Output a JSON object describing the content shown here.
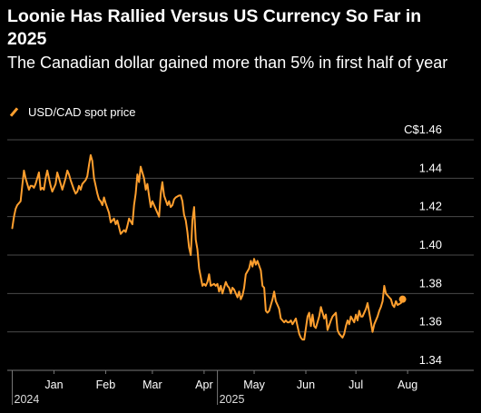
{
  "header": {
    "title": "Loonie Has Rallied Versus US Currency So Far in 2025",
    "subtitle": "The Canadian dollar gained more than 5% in first half of year"
  },
  "legend": {
    "label": "USD/CAD spot price"
  },
  "colors": {
    "background": "#000000",
    "line": "#ff9f2e",
    "grid": "#4a4a4a",
    "text": "#ffffff"
  },
  "chart_data": {
    "type": "line",
    "title": "Loonie Has Rallied Versus US Currency So Far in 2025",
    "subtitle": "The Canadian dollar gained more than 5% in first half of year",
    "legend_position": "top-left",
    "grid": true,
    "ylim": [
      1.34,
      1.46
    ],
    "y_ticks": [
      {
        "value": 1.46,
        "label": "C$1.46"
      },
      {
        "value": 1.44,
        "label": "1.44"
      },
      {
        "value": 1.42,
        "label": "1.42"
      },
      {
        "value": 1.4,
        "label": "1.40"
      },
      {
        "value": 1.38,
        "label": "1.38"
      },
      {
        "value": 1.36,
        "label": "1.36"
      },
      {
        "value": 1.34,
        "label": "1.34"
      }
    ],
    "xlim": [
      "2024-12-18",
      "2025-08-22"
    ],
    "x_ticks": [
      {
        "date": "2025-01-15",
        "label": "Jan"
      },
      {
        "date": "2025-02-15",
        "label": "Feb"
      },
      {
        "date": "2025-03-15",
        "label": "Mar"
      },
      {
        "date": "2025-04-15",
        "label": "Apr"
      },
      {
        "date": "2025-05-15",
        "label": "May"
      },
      {
        "date": "2025-06-15",
        "label": "Jun"
      },
      {
        "date": "2025-07-15",
        "label": "Jul"
      },
      {
        "date": "2025-08-15",
        "label": "Aug"
      }
    ],
    "year_labels": [
      {
        "date": "2024-12-21",
        "label": "2024"
      },
      {
        "date": "2025-04-23",
        "label": "2025"
      }
    ],
    "series": [
      {
        "name": "USD/CAD spot price",
        "points": [
          [
            "2024-12-21",
            1.414
          ],
          [
            "2024-12-22",
            1.42
          ],
          [
            "2024-12-23",
            1.424
          ],
          [
            "2024-12-24",
            1.426
          ],
          [
            "2024-12-26",
            1.428
          ],
          [
            "2024-12-27",
            1.436
          ],
          [
            "2024-12-28",
            1.444
          ],
          [
            "2024-12-29",
            1.44
          ],
          [
            "2024-12-31",
            1.434
          ],
          [
            "2025-01-01",
            1.436
          ],
          [
            "2025-01-02",
            1.436
          ],
          [
            "2025-01-03",
            1.435
          ],
          [
            "2025-01-04",
            1.437
          ],
          [
            "2025-01-06",
            1.443
          ],
          [
            "2025-01-07",
            1.434
          ],
          [
            "2025-01-08",
            1.435
          ],
          [
            "2025-01-09",
            1.434
          ],
          [
            "2025-01-10",
            1.44
          ],
          [
            "2025-01-11",
            1.444
          ],
          [
            "2025-01-13",
            1.436
          ],
          [
            "2025-01-14",
            1.433
          ],
          [
            "2025-01-15",
            1.435
          ],
          [
            "2025-01-16",
            1.437
          ],
          [
            "2025-01-17",
            1.443
          ],
          [
            "2025-01-18",
            1.44
          ],
          [
            "2025-01-20",
            1.434
          ],
          [
            "2025-01-21",
            1.437
          ],
          [
            "2025-01-22",
            1.44
          ],
          [
            "2025-01-23",
            1.444
          ],
          [
            "2025-01-24",
            1.442
          ],
          [
            "2025-01-25",
            1.439
          ],
          [
            "2025-01-27",
            1.434
          ],
          [
            "2025-01-28",
            1.432
          ],
          [
            "2025-01-29",
            1.433
          ],
          [
            "2025-01-30",
            1.436
          ],
          [
            "2025-01-31",
            1.434
          ],
          [
            "2025-02-01",
            1.437
          ],
          [
            "2025-02-03",
            1.439
          ],
          [
            "2025-02-04",
            1.441
          ],
          [
            "2025-02-05",
            1.447
          ],
          [
            "2025-02-06",
            1.452
          ],
          [
            "2025-02-07",
            1.449
          ],
          [
            "2025-02-08",
            1.44
          ],
          [
            "2025-02-10",
            1.432
          ],
          [
            "2025-02-11",
            1.429
          ],
          [
            "2025-02-12",
            1.428
          ],
          [
            "2025-02-13",
            1.426
          ],
          [
            "2025-02-14",
            1.43
          ],
          [
            "2025-02-15",
            1.427
          ],
          [
            "2025-02-17",
            1.422
          ],
          [
            "2025-02-18",
            1.417
          ],
          [
            "2025-02-19",
            1.418
          ],
          [
            "2025-02-20",
            1.419
          ],
          [
            "2025-02-21",
            1.416
          ],
          [
            "2025-02-22",
            1.418
          ],
          [
            "2025-02-24",
            1.411
          ],
          [
            "2025-02-25",
            1.412
          ],
          [
            "2025-02-26",
            1.413
          ],
          [
            "2025-02-27",
            1.412
          ],
          [
            "2025-02-28",
            1.415
          ],
          [
            "2025-03-01",
            1.419
          ],
          [
            "2025-03-03",
            1.416
          ],
          [
            "2025-03-04",
            1.426
          ],
          [
            "2025-03-05",
            1.432
          ],
          [
            "2025-03-06",
            1.442
          ],
          [
            "2025-03-07",
            1.438
          ],
          [
            "2025-03-08",
            1.446
          ],
          [
            "2025-03-10",
            1.44
          ],
          [
            "2025-03-11",
            1.434
          ],
          [
            "2025-03-12",
            1.437
          ],
          [
            "2025-03-13",
            1.431
          ],
          [
            "2025-03-14",
            1.425
          ],
          [
            "2025-03-15",
            1.428
          ],
          [
            "2025-03-17",
            1.424
          ],
          [
            "2025-03-18",
            1.422
          ],
          [
            "2025-03-19",
            1.42
          ],
          [
            "2025-03-20",
            1.432
          ],
          [
            "2025-03-21",
            1.438
          ],
          [
            "2025-03-22",
            1.431
          ],
          [
            "2025-03-24",
            1.426
          ],
          [
            "2025-03-25",
            1.428
          ],
          [
            "2025-03-26",
            1.425
          ],
          [
            "2025-03-27",
            1.426
          ],
          [
            "2025-03-28",
            1.429
          ],
          [
            "2025-03-29",
            1.43
          ],
          [
            "2025-03-31",
            1.431
          ],
          [
            "2025-04-01",
            1.431
          ],
          [
            "2025-04-02",
            1.428
          ],
          [
            "2025-04-03",
            1.421
          ],
          [
            "2025-04-04",
            1.418
          ],
          [
            "2025-04-05",
            1.412
          ],
          [
            "2025-04-06",
            1.404
          ],
          [
            "2025-04-07",
            1.4
          ],
          [
            "2025-04-08",
            1.418
          ],
          [
            "2025-04-09",
            1.425
          ],
          [
            "2025-04-10",
            1.408
          ],
          [
            "2025-04-11",
            1.403
          ],
          [
            "2025-04-12",
            1.393
          ],
          [
            "2025-04-14",
            1.384
          ],
          [
            "2025-04-15",
            1.385
          ],
          [
            "2025-04-16",
            1.384
          ],
          [
            "2025-04-17",
            1.386
          ],
          [
            "2025-04-18",
            1.39
          ],
          [
            "2025-04-19",
            1.384
          ],
          [
            "2025-04-21",
            1.385
          ],
          [
            "2025-04-22",
            1.384
          ],
          [
            "2025-04-23",
            1.385
          ],
          [
            "2025-04-24",
            1.381
          ],
          [
            "2025-04-25",
            1.384
          ],
          [
            "2025-04-26",
            1.38
          ],
          [
            "2025-04-28",
            1.386
          ],
          [
            "2025-04-29",
            1.384
          ],
          [
            "2025-04-30",
            1.383
          ],
          [
            "2025-05-01",
            1.38
          ],
          [
            "2025-05-02",
            1.383
          ],
          [
            "2025-05-03",
            1.382
          ],
          [
            "2025-05-05",
            1.378
          ],
          [
            "2025-05-06",
            1.381
          ],
          [
            "2025-05-07",
            1.377
          ],
          [
            "2025-05-08",
            1.379
          ],
          [
            "2025-05-09",
            1.383
          ],
          [
            "2025-05-10",
            1.39
          ],
          [
            "2025-05-12",
            1.393
          ],
          [
            "2025-05-13",
            1.397
          ],
          [
            "2025-05-14",
            1.394
          ],
          [
            "2025-05-15",
            1.398
          ],
          [
            "2025-05-16",
            1.395
          ],
          [
            "2025-05-17",
            1.397
          ],
          [
            "2025-05-19",
            1.392
          ],
          [
            "2025-05-20",
            1.384
          ],
          [
            "2025-05-21",
            1.383
          ],
          [
            "2025-05-22",
            1.371
          ],
          [
            "2025-05-23",
            1.37
          ],
          [
            "2025-05-24",
            1.371
          ],
          [
            "2025-05-26",
            1.377
          ],
          [
            "2025-05-27",
            1.381
          ],
          [
            "2025-05-28",
            1.376
          ],
          [
            "2025-05-29",
            1.374
          ],
          [
            "2025-05-30",
            1.372
          ],
          [
            "2025-05-31",
            1.367
          ],
          [
            "2025-06-02",
            1.365
          ],
          [
            "2025-06-03",
            1.366
          ],
          [
            "2025-06-04",
            1.365
          ],
          [
            "2025-06-05",
            1.365
          ],
          [
            "2025-06-06",
            1.366
          ],
          [
            "2025-06-07",
            1.364
          ],
          [
            "2025-06-09",
            1.367
          ],
          [
            "2025-06-10",
            1.363
          ],
          [
            "2025-06-11",
            1.359
          ],
          [
            "2025-06-12",
            1.357
          ],
          [
            "2025-06-13",
            1.356
          ],
          [
            "2025-06-14",
            1.356
          ],
          [
            "2025-06-16",
            1.368
          ],
          [
            "2025-06-17",
            1.37
          ],
          [
            "2025-06-18",
            1.363
          ],
          [
            "2025-06-19",
            1.369
          ],
          [
            "2025-06-20",
            1.363
          ],
          [
            "2025-06-21",
            1.362
          ],
          [
            "2025-06-23",
            1.368
          ],
          [
            "2025-06-24",
            1.373
          ],
          [
            "2025-06-25",
            1.37
          ],
          [
            "2025-06-26",
            1.367
          ],
          [
            "2025-06-27",
            1.369
          ],
          [
            "2025-06-28",
            1.361
          ],
          [
            "2025-06-30",
            1.366
          ],
          [
            "2025-07-01",
            1.368
          ],
          [
            "2025-07-02",
            1.369
          ],
          [
            "2025-07-03",
            1.37
          ],
          [
            "2025-07-04",
            1.361
          ],
          [
            "2025-07-05",
            1.359
          ],
          [
            "2025-07-07",
            1.357
          ],
          [
            "2025-07-08",
            1.359
          ],
          [
            "2025-07-09",
            1.363
          ],
          [
            "2025-07-10",
            1.366
          ],
          [
            "2025-07-11",
            1.364
          ],
          [
            "2025-07-12",
            1.368
          ],
          [
            "2025-07-14",
            1.365
          ],
          [
            "2025-07-15",
            1.369
          ],
          [
            "2025-07-16",
            1.366
          ],
          [
            "2025-07-17",
            1.371
          ],
          [
            "2025-07-18",
            1.368
          ],
          [
            "2025-07-19",
            1.368
          ],
          [
            "2025-07-21",
            1.372
          ],
          [
            "2025-07-22",
            1.375
          ],
          [
            "2025-07-23",
            1.37
          ],
          [
            "2025-07-24",
            1.365
          ],
          [
            "2025-07-25",
            1.36
          ],
          [
            "2025-07-26",
            1.364
          ],
          [
            "2025-07-28",
            1.368
          ],
          [
            "2025-07-29",
            1.371
          ],
          [
            "2025-07-30",
            1.373
          ],
          [
            "2025-07-31",
            1.376
          ],
          [
            "2025-08-01",
            1.384
          ],
          [
            "2025-08-02",
            1.38
          ],
          [
            "2025-08-04",
            1.378
          ],
          [
            "2025-08-05",
            1.377
          ],
          [
            "2025-08-06",
            1.374
          ],
          [
            "2025-08-07",
            1.373
          ],
          [
            "2025-08-08",
            1.376
          ],
          [
            "2025-08-09",
            1.374
          ],
          [
            "2025-08-11",
            1.375
          ],
          [
            "2025-08-12",
            1.377
          ]
        ]
      }
    ]
  }
}
